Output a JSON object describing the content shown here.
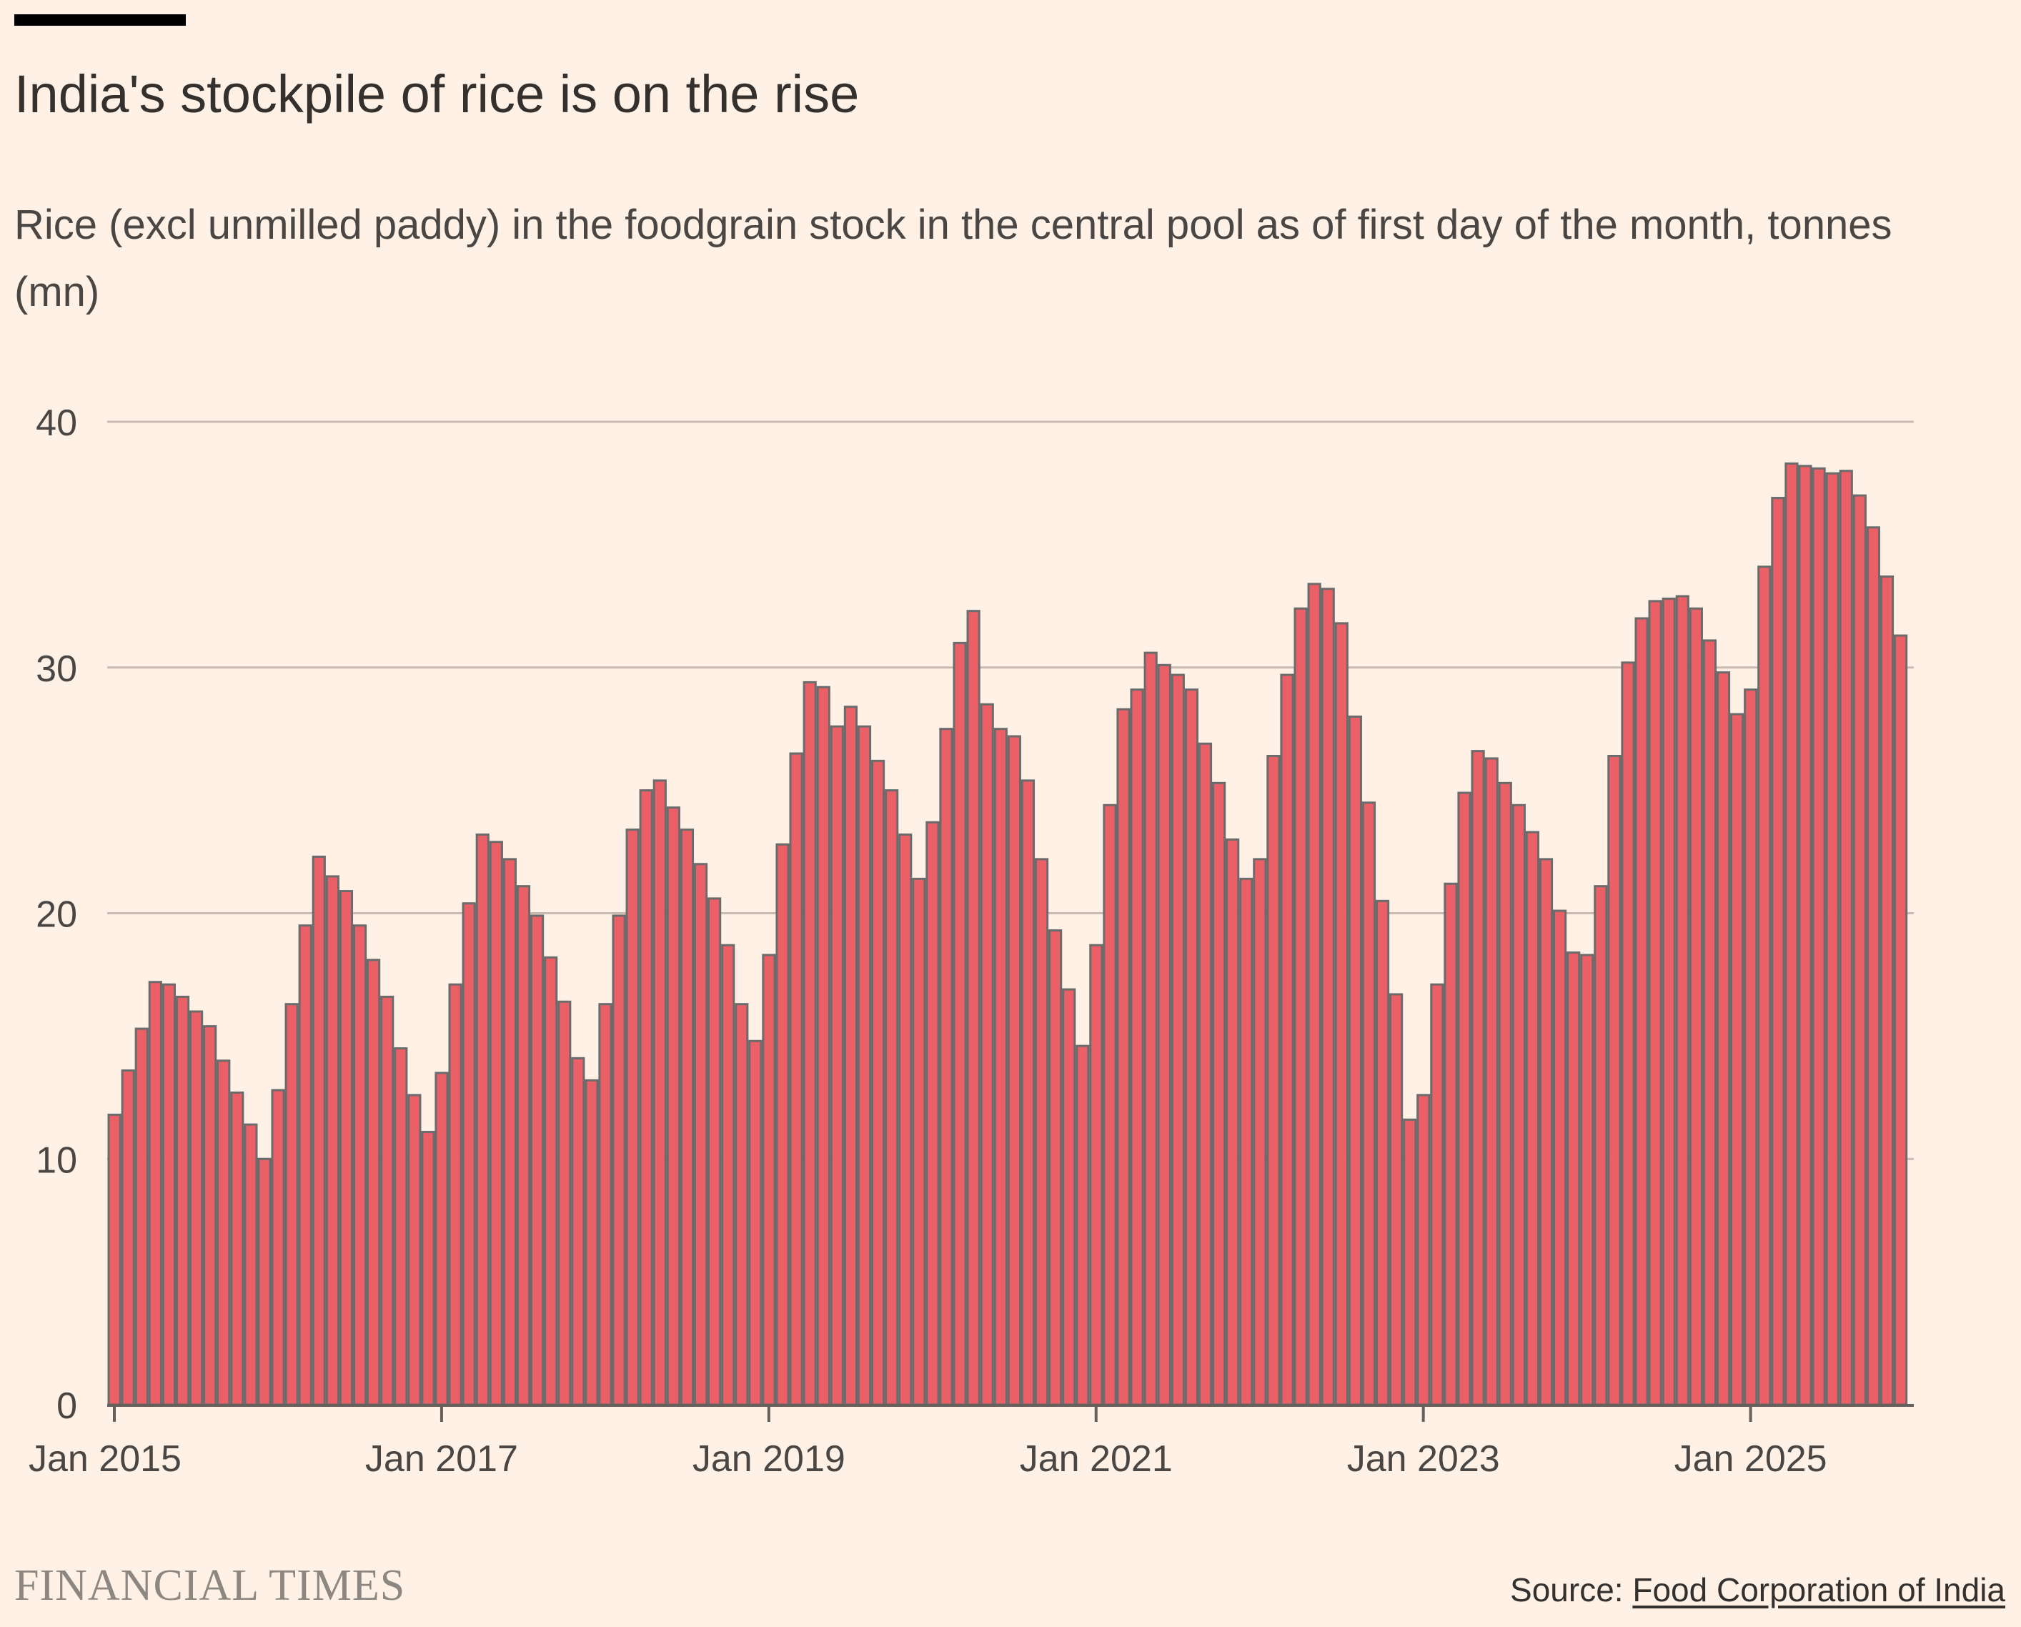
{
  "header": {
    "title": "India's stockpile of rice is on the rise",
    "subtitle": "Rice (excl unmilled paddy) in the foodgrain stock in the central pool as of first day of the month, tonnes (mn)"
  },
  "footer": {
    "logo_text": "FINANCIAL TIMES",
    "source_label": "Source:",
    "source_link": "Food Corporation of India"
  },
  "colors": {
    "background": "#fff1e5",
    "bar_fill": "#eb5f67",
    "bar_stroke": "#6b6b6b",
    "grid": "#c9bbb1",
    "axis": "#66605c"
  },
  "chart_data": {
    "type": "bar",
    "title": "India's stockpile of rice is on the rise",
    "subtitle": "Rice (excl unmilled paddy) in the foodgrain stock in the central pool as of first day of the month, tonnes (mn)",
    "xlabel": "",
    "ylabel": "",
    "ylim": [
      0,
      40
    ],
    "yticks": [
      "0",
      "10",
      "20",
      "30",
      "40"
    ],
    "xtick_labels": [
      "Jan 2015",
      "Jan 2017",
      "Jan 2019",
      "Jan 2021",
      "Jan 2023",
      "Jan 2025"
    ],
    "grid": true,
    "x_start": "Jan 2015",
    "x_end": "Dec 2025",
    "frequency": "monthly",
    "values": [
      11.8,
      13.6,
      15.3,
      17.2,
      17.1,
      16.6,
      16.0,
      15.4,
      14.0,
      12.7,
      11.4,
      10.0,
      12.8,
      16.3,
      19.5,
      22.3,
      21.5,
      20.9,
      19.5,
      18.1,
      16.6,
      14.5,
      12.6,
      11.1,
      13.5,
      17.1,
      20.4,
      23.2,
      22.9,
      22.2,
      21.1,
      19.9,
      18.2,
      16.4,
      14.1,
      13.2,
      16.3,
      19.9,
      23.4,
      25.0,
      25.4,
      24.3,
      23.4,
      22.0,
      20.6,
      18.7,
      16.3,
      14.8,
      18.3,
      22.8,
      26.5,
      29.4,
      29.2,
      27.6,
      28.4,
      27.6,
      26.2,
      25.0,
      23.2,
      21.4,
      23.7,
      27.5,
      31.0,
      32.3,
      28.5,
      27.5,
      27.2,
      25.4,
      22.2,
      19.3,
      16.9,
      14.6,
      18.7,
      24.4,
      28.3,
      29.1,
      30.6,
      30.1,
      29.7,
      29.1,
      26.9,
      25.3,
      23.0,
      21.4,
      22.2,
      26.4,
      29.7,
      32.4,
      33.4,
      33.2,
      31.8,
      28.0,
      24.5,
      20.5,
      16.7,
      11.6,
      12.6,
      17.1,
      21.2,
      24.9,
      26.6,
      26.3,
      25.3,
      24.4,
      23.3,
      22.2,
      20.1,
      18.4,
      18.3,
      21.1,
      26.4,
      30.2,
      32.0,
      32.7,
      32.8,
      32.9,
      32.4,
      31.1,
      29.8,
      28.1,
      29.1,
      34.1,
      36.9,
      38.3,
      38.2,
      38.1,
      37.9,
      38.0,
      37.0,
      35.7,
      33.7,
      31.3
    ]
  }
}
